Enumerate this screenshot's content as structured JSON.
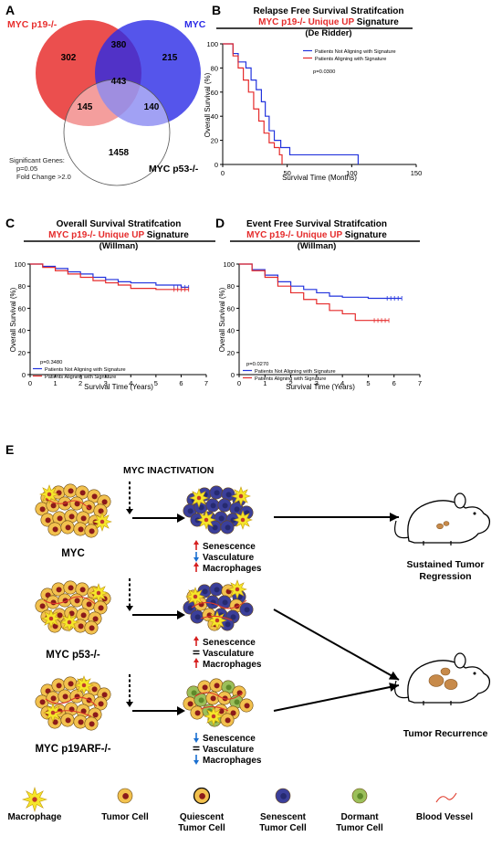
{
  "panel_a": {
    "label": "A",
    "set_labels": [
      "MYC p19-/-",
      "MYC",
      "MYC p53-/-"
    ],
    "counts": {
      "p19_only": 302,
      "myc_only": 215,
      "p53_only": 1458,
      "p19_myc": 380,
      "p19_p53": 145,
      "myc_p53": 140,
      "all": 443
    },
    "notes": [
      "Significant Genes:",
      "p=0.05",
      "Fold Change >2.0"
    ],
    "colors": {
      "p19": "#e8302f",
      "myc": "#2a2ae6",
      "p53": "#ffffff"
    }
  },
  "km_panels": [
    {
      "id": "B",
      "title": "Relapse Free Survival Stratifcation",
      "subtitle_red": "MYC p19-/- Unique UP",
      "subtitle_black": "Signature",
      "cohort": "(De Ridder)",
      "xlabel": "Survival Time (Months)",
      "ylabel": "Overall Survival (%)",
      "pvalue": "p=0.0300",
      "xticks": [
        0,
        50,
        100,
        150
      ],
      "yticks": [
        0,
        20,
        40,
        60,
        80,
        100
      ],
      "xlim": [
        0,
        150
      ],
      "ylim": [
        0,
        100
      ],
      "legend": [
        "Patients Not Aligning with Signature",
        "Patients Aligning with Signature"
      ],
      "series": [
        {
          "color": "#2233dd",
          "points": [
            [
              0,
              100
            ],
            [
              5,
              100
            ],
            [
              8,
              92
            ],
            [
              12,
              85
            ],
            [
              18,
              80
            ],
            [
              22,
              70
            ],
            [
              26,
              62
            ],
            [
              30,
              52
            ],
            [
              33,
              40
            ],
            [
              36,
              28
            ],
            [
              40,
              20
            ],
            [
              45,
              14
            ],
            [
              52,
              8
            ],
            [
              60,
              8
            ],
            [
              105,
              8
            ],
            [
              105,
              0
            ]
          ]
        },
        {
          "color": "#e52b2b",
          "points": [
            [
              0,
              100
            ],
            [
              5,
              100
            ],
            [
              8,
              90
            ],
            [
              12,
              80
            ],
            [
              16,
              70
            ],
            [
              20,
              60
            ],
            [
              24,
              46
            ],
            [
              28,
              36
            ],
            [
              32,
              26
            ],
            [
              36,
              18
            ],
            [
              40,
              14
            ],
            [
              44,
              8
            ],
            [
              46,
              0
            ]
          ]
        }
      ]
    },
    {
      "id": "C",
      "title": "Overall Survival Stratifcation",
      "subtitle_red": "MYC p19-/- Unique UP",
      "subtitle_black": "Signature",
      "cohort": "(Willman)",
      "xlabel": "Survival Time (Years)",
      "ylabel": "Overall Survival (%)",
      "pvalue": "p=0.3480",
      "xticks": [
        0,
        1,
        2,
        3,
        4,
        5,
        6,
        7
      ],
      "yticks": [
        0,
        20,
        40,
        60,
        80,
        100
      ],
      "xlim": [
        0,
        7
      ],
      "ylim": [
        0,
        100
      ],
      "legend": [
        "Patients Not Aligning with Signature",
        "Patients Aligning with Signature"
      ],
      "series": [
        {
          "color": "#2233dd",
          "points": [
            [
              0,
              100
            ],
            [
              0.5,
              98
            ],
            [
              1,
              96
            ],
            [
              1.5,
              93
            ],
            [
              2,
              91
            ],
            [
              2.5,
              88
            ],
            [
              3,
              86
            ],
            [
              3.5,
              84
            ],
            [
              4,
              83
            ],
            [
              5,
              81
            ],
            [
              6,
              79
            ],
            [
              6.3,
              79
            ]
          ]
        },
        {
          "color": "#e52b2b",
          "points": [
            [
              0,
              100
            ],
            [
              0.5,
              97
            ],
            [
              1,
              94
            ],
            [
              1.5,
              91
            ],
            [
              2,
              88
            ],
            [
              2.5,
              85
            ],
            [
              3,
              83
            ],
            [
              3.5,
              81
            ],
            [
              4,
              78
            ],
            [
              5,
              77
            ],
            [
              6,
              77
            ],
            [
              6.3,
              77
            ]
          ]
        }
      ]
    },
    {
      "id": "D",
      "title": "Event Free Survival Stratifcation",
      "subtitle_red": "MYC p19-/- Unique UP",
      "subtitle_black": "Signature",
      "cohort": "(Willman)",
      "xlabel": "Survival Time (Years)",
      "ylabel": "Overall Survival (%)",
      "pvalue": "p=0.0270",
      "xticks": [
        0,
        1,
        2,
        3,
        4,
        5,
        6,
        7
      ],
      "yticks": [
        0,
        20,
        40,
        60,
        80,
        100
      ],
      "xlim": [
        0,
        7
      ],
      "ylim": [
        0,
        100
      ],
      "legend": [
        "Patients Not Aligning with Signature",
        "Patients Aligning with Signature"
      ],
      "series": [
        {
          "color": "#2233dd",
          "points": [
            [
              0,
              100
            ],
            [
              0.5,
              95
            ],
            [
              1,
              90
            ],
            [
              1.5,
              84
            ],
            [
              2,
              80
            ],
            [
              2.5,
              77
            ],
            [
              3,
              74
            ],
            [
              3.5,
              71
            ],
            [
              4,
              70
            ],
            [
              5,
              69
            ],
            [
              6,
              69
            ],
            [
              6.3,
              69
            ]
          ]
        },
        {
          "color": "#e52b2b",
          "points": [
            [
              0,
              100
            ],
            [
              0.5,
              94
            ],
            [
              1,
              88
            ],
            [
              1.5,
              80
            ],
            [
              2,
              74
            ],
            [
              2.5,
              68
            ],
            [
              3,
              64
            ],
            [
              3.5,
              58
            ],
            [
              4,
              55
            ],
            [
              4.5,
              49
            ],
            [
              5,
              49
            ],
            [
              5.8,
              49
            ]
          ]
        }
      ]
    }
  ],
  "panel_e": {
    "label": "E",
    "header": "MYC INACTIVATION",
    "rows": [
      {
        "name": "MYC",
        "changes": [
          {
            "dir": "up",
            "label": "Senescence"
          },
          {
            "dir": "down",
            "label": "Vasculature"
          },
          {
            "dir": "up",
            "label": "Macrophages"
          }
        ]
      },
      {
        "name": "MYC p53-/-",
        "changes": [
          {
            "dir": "up",
            "label": "Senescence"
          },
          {
            "dir": "eq",
            "label": "Vasculature"
          },
          {
            "dir": "up",
            "label": "Macrophages"
          }
        ]
      },
      {
        "name": "MYC p19ARF-/-",
        "changes": [
          {
            "dir": "down",
            "label": "Senescence"
          },
          {
            "dir": "eq",
            "label": "Vasculature"
          },
          {
            "dir": "down",
            "label": "Macrophages"
          }
        ]
      }
    ],
    "outcomes": [
      [
        "Sustained Tumor",
        "Regression"
      ],
      [
        "Tumor Recurrence"
      ]
    ],
    "legend": [
      [
        "Macrophage"
      ],
      [
        "Tumor Cell"
      ],
      [
        "Quiescent",
        "Tumor Cell"
      ],
      [
        "Senescent",
        "Tumor Cell"
      ],
      [
        "Dormant",
        "Tumor Cell"
      ],
      [
        "Blood Vessel"
      ]
    ],
    "colors": {
      "up": "#d62020",
      "down": "#1a6fd0",
      "tumor": "#f2c14e",
      "nucleus": "#8b1a1a",
      "senescent": "#3b3f9a",
      "dormant": "#9bbf5a",
      "macrophage": "#f5e62a"
    }
  }
}
